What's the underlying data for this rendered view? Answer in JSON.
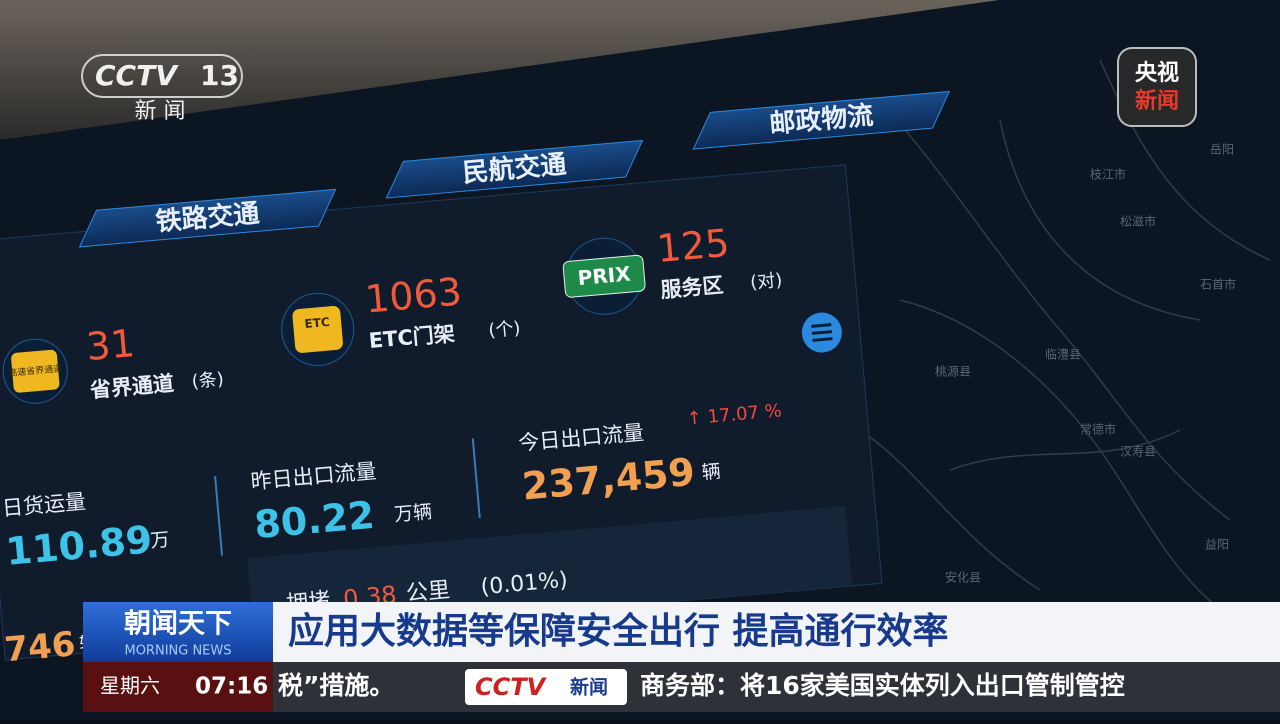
{
  "broadcast": {
    "channel_logo": "CCTV",
    "channel_number": "13",
    "channel_name": "新 闻",
    "corner_logo": [
      "央视",
      "新闻"
    ]
  },
  "dashboard": {
    "tabs": [
      "铁路交通",
      "民航交通",
      "邮政物流"
    ],
    "facilities": [
      {
        "icon": "高速省界通道",
        "value": "31",
        "label": "省界通道",
        "unit": "(条)"
      },
      {
        "icon": "ETC",
        "value": "1063",
        "label": "ETC门架",
        "unit": "(个)"
      },
      {
        "icon": "PRIX",
        "value": "125",
        "label": "服务区",
        "unit": "(对)"
      }
    ],
    "stats": [
      {
        "label": "日货运量",
        "value": "110.89",
        "unit": "万"
      },
      {
        "label": "昨日出口流量",
        "value": "80.22",
        "unit": "万辆"
      },
      {
        "label": "今日出口流量",
        "value": "237,459",
        "unit": "辆",
        "change": "↑ 17.07 %"
      }
    ],
    "congestion": {
      "label": "拥堵",
      "value": "0.38",
      "unit": "公里",
      "share": "(0.01%)"
    },
    "partial": {
      "value": "746",
      "unit": "辆"
    }
  },
  "map_labels": [
    "枝江市",
    "松滋市",
    "石首市",
    "临澧县",
    "常德市",
    "汉寿县",
    "益阳",
    "安化县",
    "桃源县",
    "岳阳"
  ],
  "lower_third": {
    "program": "朝闻天下",
    "program_en": "MORNING NEWS",
    "headline": "应用大数据等保障安全出行 提高通行效率",
    "day": "星期六",
    "time": "07:16",
    "ticker_left": "税”措施。",
    "ticker_logo": "CCTV",
    "ticker_logo_sub": "新闻",
    "ticker": "商务部：将16家美国实体列入出口管制管控"
  }
}
